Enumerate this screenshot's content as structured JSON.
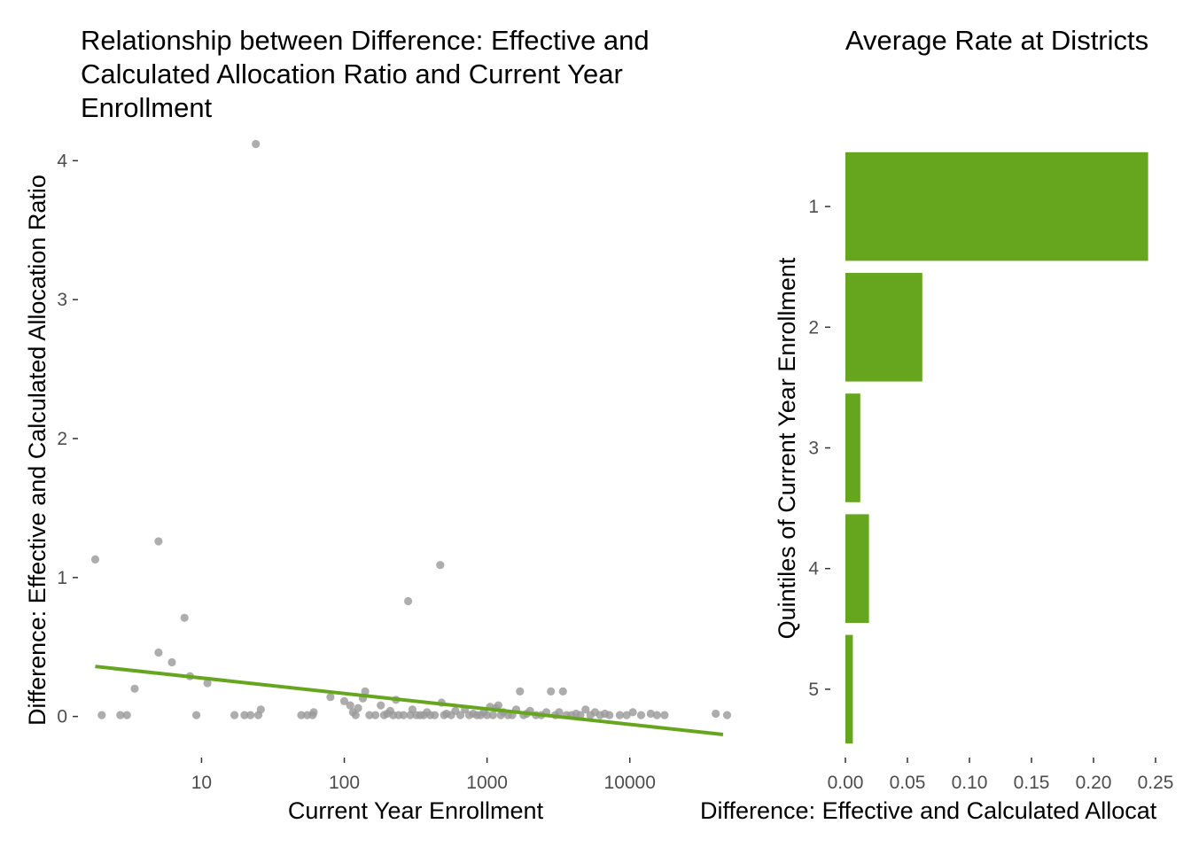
{
  "colors": {
    "accent": "#66a61e",
    "point": "#999999",
    "tick_text": "#4d4d4d"
  },
  "chart_data": [
    {
      "type": "scatter",
      "title_lines": [
        "Relationship between Difference: Effective and",
        "Calculated Allocation Ratio and Current Year",
        "Enrollment"
      ],
      "xlabel": "Current Year Enrollment",
      "ylabel": "Difference: Effective and Calculated Allocation Ratio",
      "x_scale": "log10",
      "xlim": [
        1.55,
        55000
      ],
      "ylim": [
        -0.2,
        4.2
      ],
      "x_ticks": [
        10,
        100,
        1000,
        10000
      ],
      "x_tick_labels": [
        "10",
        "100",
        "1000",
        "10000"
      ],
      "y_ticks": [
        0,
        1,
        2,
        3,
        4
      ],
      "y_tick_labels": [
        "0",
        "1",
        "2",
        "3",
        "4"
      ],
      "grid": false,
      "trend_line": {
        "x": [
          1.8,
          45000
        ],
        "y": [
          0.36,
          -0.13
        ]
      },
      "points": [
        [
          1.8,
          1.13
        ],
        [
          2,
          0.01
        ],
        [
          2.7,
          0.01
        ],
        [
          3,
          0.01
        ],
        [
          3.4,
          0.2
        ],
        [
          5,
          1.26
        ],
        [
          5,
          0.46
        ],
        [
          6.2,
          0.39
        ],
        [
          7.6,
          0.71
        ],
        [
          8.3,
          0.29
        ],
        [
          9.2,
          0.01
        ],
        [
          11,
          0.24
        ],
        [
          17,
          0.01
        ],
        [
          20,
          0.01
        ],
        [
          22,
          0.01
        ],
        [
          24,
          4.12
        ],
        [
          25,
          0.01
        ],
        [
          26,
          0.05
        ],
        [
          50,
          0.01
        ],
        [
          55,
          0.01
        ],
        [
          60,
          0.01
        ],
        [
          61,
          0.03
        ],
        [
          80,
          0.14
        ],
        [
          100,
          0.11
        ],
        [
          110,
          0.08
        ],
        [
          115,
          0.03
        ],
        [
          120,
          0.01
        ],
        [
          125,
          0.06
        ],
        [
          135,
          0.13
        ],
        [
          140,
          0.18
        ],
        [
          150,
          0.01
        ],
        [
          165,
          0.01
        ],
        [
          180,
          0.08
        ],
        [
          190,
          0.01
        ],
        [
          200,
          0.02
        ],
        [
          210,
          0.04
        ],
        [
          220,
          0.01
        ],
        [
          230,
          0.12
        ],
        [
          240,
          0.01
        ],
        [
          260,
          0.01
        ],
        [
          280,
          0.83
        ],
        [
          290,
          0.01
        ],
        [
          300,
          0.05
        ],
        [
          320,
          0.01
        ],
        [
          340,
          0.01
        ],
        [
          360,
          0.01
        ],
        [
          380,
          0.03
        ],
        [
          400,
          0.01
        ],
        [
          430,
          0.01
        ],
        [
          470,
          1.09
        ],
        [
          480,
          0.1
        ],
        [
          500,
          0.01
        ],
        [
          520,
          0.02
        ],
        [
          560,
          0.01
        ],
        [
          600,
          0.04
        ],
        [
          650,
          0.01
        ],
        [
          700,
          0.05
        ],
        [
          750,
          0.01
        ],
        [
          800,
          0.02
        ],
        [
          850,
          0.01
        ],
        [
          900,
          0.01
        ],
        [
          950,
          0.03
        ],
        [
          1000,
          0.01
        ],
        [
          1050,
          0.07
        ],
        [
          1100,
          0.01
        ],
        [
          1150,
          0.06
        ],
        [
          1200,
          0.08
        ],
        [
          1250,
          0.01
        ],
        [
          1300,
          0.03
        ],
        [
          1400,
          0.01
        ],
        [
          1500,
          0.01
        ],
        [
          1600,
          0.05
        ],
        [
          1700,
          0.18
        ],
        [
          1800,
          0.01
        ],
        [
          1900,
          0.02
        ],
        [
          2000,
          0.04
        ],
        [
          2200,
          0.01
        ],
        [
          2400,
          0.01
        ],
        [
          2600,
          0.03
        ],
        [
          2800,
          0.18
        ],
        [
          3000,
          0.01
        ],
        [
          3200,
          0.03
        ],
        [
          3400,
          0.18
        ],
        [
          3600,
          0.01
        ],
        [
          3900,
          0.01
        ],
        [
          4200,
          0.02
        ],
        [
          4500,
          0.01
        ],
        [
          4900,
          0.05
        ],
        [
          5300,
          0.01
        ],
        [
          5700,
          0.03
        ],
        [
          6200,
          0.01
        ],
        [
          6700,
          0.02
        ],
        [
          7200,
          0.01
        ],
        [
          8500,
          0.01
        ],
        [
          9500,
          0.01
        ],
        [
          10500,
          0.03
        ],
        [
          12000,
          0.01
        ],
        [
          14000,
          0.02
        ],
        [
          15500,
          0.01
        ],
        [
          17500,
          0.01
        ],
        [
          40000,
          0.02
        ],
        [
          48000,
          0.01
        ]
      ]
    },
    {
      "type": "bar",
      "orientation": "horizontal",
      "title": "Average Rate at Districts",
      "xlabel": "Difference: Effective and Calculated Allocat",
      "ylabel": "Quintiles of Current Year Enrollment",
      "categories": [
        "1",
        "2",
        "3",
        "4",
        "5"
      ],
      "values": [
        0.244,
        0.062,
        0.012,
        0.019,
        0.006
      ],
      "xlim": [
        -0.005,
        0.25
      ],
      "x_ticks": [
        0,
        0.05,
        0.1,
        0.15,
        0.2,
        0.25
      ],
      "x_tick_labels": [
        "0.00",
        "0.05",
        "0.10",
        "0.15",
        "0.20",
        "0.25"
      ],
      "grid": false
    }
  ]
}
